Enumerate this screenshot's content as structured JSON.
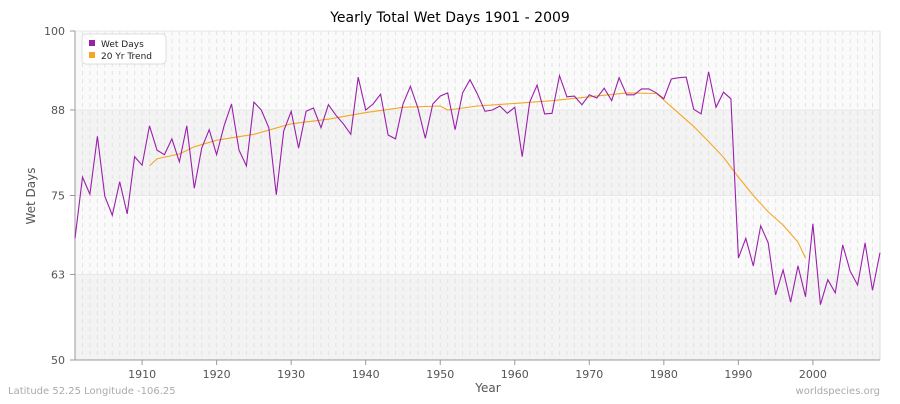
{
  "chart_data": {
    "type": "line",
    "title": "Yearly Total Wet Days 1901 - 2009",
    "xlabel": "Year",
    "ylabel": "Wet Days",
    "xlim": [
      1901,
      2009
    ],
    "ylim": [
      50,
      100
    ],
    "yticks": [
      50,
      63,
      75,
      88,
      100
    ],
    "xticks": [
      1910,
      1920,
      1930,
      1940,
      1950,
      1960,
      1970,
      1980,
      1990,
      2000
    ],
    "grid": true,
    "legend_position": "top-left",
    "series": [
      {
        "name": "Wet Days",
        "color": "#9b1fab",
        "x": [
          1901,
          1902,
          1903,
          1904,
          1905,
          1906,
          1907,
          1908,
          1909,
          1910,
          1911,
          1912,
          1913,
          1914,
          1915,
          1916,
          1917,
          1918,
          1919,
          1920,
          1921,
          1922,
          1923,
          1924,
          1925,
          1926,
          1927,
          1928,
          1929,
          1930,
          1931,
          1932,
          1933,
          1934,
          1935,
          1936,
          1937,
          1938,
          1939,
          1940,
          1941,
          1942,
          1943,
          1944,
          1945,
          1946,
          1947,
          1948,
          1949,
          1950,
          1951,
          1952,
          1953,
          1954,
          1955,
          1956,
          1957,
          1958,
          1959,
          1960,
          1961,
          1962,
          1963,
          1964,
          1965,
          1966,
          1967,
          1968,
          1969,
          1970,
          1971,
          1972,
          1973,
          1974,
          1975,
          1976,
          1977,
          1978,
          1979,
          1980,
          1981,
          1982,
          1983,
          1984,
          1985,
          1986,
          1987,
          1988,
          1989,
          1990,
          1991,
          1992,
          1993,
          1994,
          1995,
          1996,
          1997,
          1998,
          1999,
          2000,
          2001,
          2002,
          2003,
          2004,
          2005,
          2006,
          2007,
          2008,
          2009
        ],
        "values": [
          68.5,
          77.8,
          75.2,
          84.0,
          74.9,
          72.0,
          77.1,
          72.2,
          80.9,
          79.6,
          85.6,
          81.9,
          81.2,
          83.6,
          80.1,
          85.6,
          76.1,
          82.2,
          85.0,
          81.2,
          85.6,
          88.9,
          81.9,
          79.5,
          89.2,
          88.0,
          85.3,
          75.1,
          84.8,
          87.8,
          82.2,
          87.8,
          88.3,
          85.3,
          88.8,
          87.2,
          85.9,
          84.3,
          93.0,
          88.0,
          88.9,
          90.4,
          84.2,
          83.6,
          88.9,
          91.6,
          88.3,
          83.7,
          88.9,
          90.1,
          90.6,
          85.0,
          90.6,
          92.6,
          90.4,
          87.8,
          88.0,
          88.6,
          87.5,
          88.4,
          80.9,
          89.2,
          91.8,
          87.4,
          87.5,
          93.2,
          90.0,
          90.1,
          88.8,
          90.3,
          89.8,
          91.3,
          89.4,
          92.9,
          90.3,
          90.3,
          91.2,
          91.2,
          90.6,
          89.7,
          92.7,
          92.9,
          93.0,
          88.1,
          87.4,
          93.8,
          88.4,
          90.7,
          89.7,
          65.5,
          68.5,
          64.3,
          70.4,
          67.8,
          59.9,
          63.7,
          58.8,
          64.3,
          59.6,
          70.7,
          58.4,
          62.2,
          60.2,
          67.5,
          63.5,
          61.4,
          67.8,
          60.6,
          66.3
        ]
      },
      {
        "name": "20 Yr Trend",
        "color": "#f5a623",
        "x": [
          1911,
          1912,
          1915,
          1917,
          1920,
          1925,
          1930,
          1935,
          1940,
          1945,
          1950,
          1951,
          1955,
          1960,
          1965,
          1970,
          1975,
          1979,
          1980,
          1982,
          1984,
          1986,
          1988,
          1990,
          1992,
          1994,
          1996,
          1998,
          1999
        ],
        "values": [
          79.5,
          80.6,
          81.3,
          82.4,
          83.4,
          84.3,
          85.9,
          86.6,
          87.6,
          88.4,
          88.6,
          88.0,
          88.6,
          89.0,
          89.4,
          90.0,
          90.6,
          90.5,
          89.5,
          87.5,
          85.5,
          83.2,
          80.8,
          77.8,
          75.0,
          72.5,
          70.5,
          67.9,
          65.5
        ]
      }
    ]
  },
  "footer": {
    "left": "Latitude 52.25 Longitude -106.25",
    "right": "worldspecies.org"
  }
}
